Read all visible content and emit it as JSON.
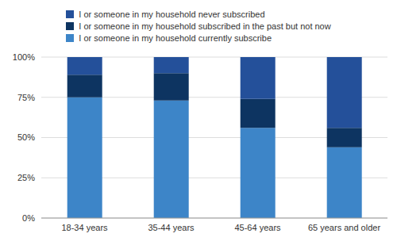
{
  "chart_data": {
    "type": "bar",
    "stacked": true,
    "grid": true,
    "legend": "top",
    "categories": [
      "18-34 years",
      "35-44 years",
      "45-64 years",
      "65 years and older"
    ],
    "series": [
      {
        "name": "I or someone in my household currently subscribe",
        "color": "#3d85c8",
        "values": [
          75,
          73,
          56,
          44
        ]
      },
      {
        "name": "I or someone in my household subscribed in the past but not now",
        "color": "#0d3461",
        "values": [
          14,
          17,
          18,
          12
        ]
      },
      {
        "name": "I or someone in my household never subscribed",
        "color": "#24509a",
        "values": [
          11,
          10,
          26,
          44
        ]
      }
    ],
    "ylim": [
      0,
      100
    ],
    "yticks": [
      {
        "value": 0,
        "label": "0%"
      },
      {
        "value": 25,
        "label": "25%"
      },
      {
        "value": 50,
        "label": "50%"
      },
      {
        "value": 75,
        "label": "75%"
      },
      {
        "value": 100,
        "label": "100%"
      }
    ]
  }
}
